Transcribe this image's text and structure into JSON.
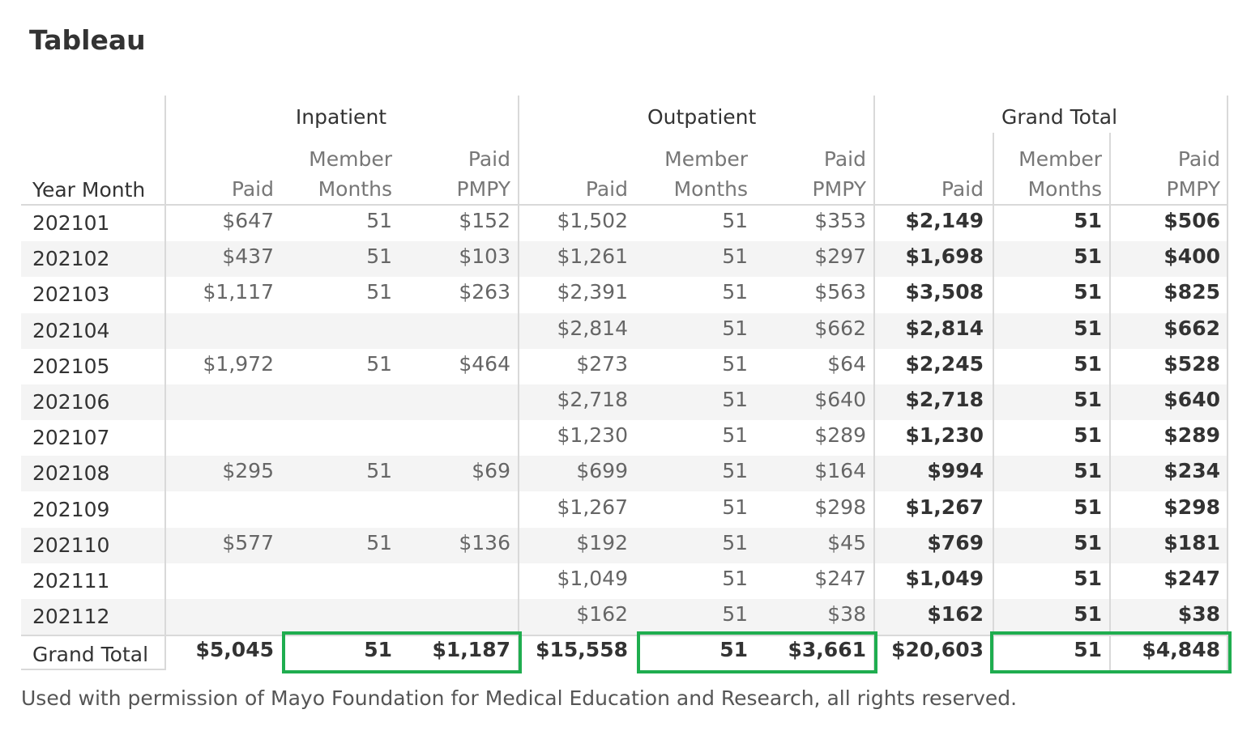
{
  "title": "Tableau",
  "groups": [
    "Inpatient",
    "Outpatient",
    "Grand Total"
  ],
  "row_header": "Year Month",
  "sub_headers": [
    [
      "",
      "Paid"
    ],
    [
      "Member",
      "Months"
    ],
    [
      "Paid",
      "PMPY"
    ]
  ],
  "rows": [
    {
      "month": "202101",
      "in": [
        "$647",
        "51",
        "$152"
      ],
      "out": [
        "$1,502",
        "51",
        "$353"
      ],
      "total": [
        "$2,149",
        "51",
        "$506"
      ]
    },
    {
      "month": "202102",
      "in": [
        "$437",
        "51",
        "$103"
      ],
      "out": [
        "$1,261",
        "51",
        "$297"
      ],
      "total": [
        "$1,698",
        "51",
        "$400"
      ]
    },
    {
      "month": "202103",
      "in": [
        "$1,117",
        "51",
        "$263"
      ],
      "out": [
        "$2,391",
        "51",
        "$563"
      ],
      "total": [
        "$3,508",
        "51",
        "$825"
      ]
    },
    {
      "month": "202104",
      "in": [
        "",
        "",
        ""
      ],
      "out": [
        "$2,814",
        "51",
        "$662"
      ],
      "total": [
        "$2,814",
        "51",
        "$662"
      ]
    },
    {
      "month": "202105",
      "in": [
        "$1,972",
        "51",
        "$464"
      ],
      "out": [
        "$273",
        "51",
        "$64"
      ],
      "total": [
        "$2,245",
        "51",
        "$528"
      ]
    },
    {
      "month": "202106",
      "in": [
        "",
        "",
        ""
      ],
      "out": [
        "$2,718",
        "51",
        "$640"
      ],
      "total": [
        "$2,718",
        "51",
        "$640"
      ]
    },
    {
      "month": "202107",
      "in": [
        "",
        "",
        ""
      ],
      "out": [
        "$1,230",
        "51",
        "$289"
      ],
      "total": [
        "$1,230",
        "51",
        "$289"
      ]
    },
    {
      "month": "202108",
      "in": [
        "$295",
        "51",
        "$69"
      ],
      "out": [
        "$699",
        "51",
        "$164"
      ],
      "total": [
        "$994",
        "51",
        "$234"
      ]
    },
    {
      "month": "202109",
      "in": [
        "",
        "",
        ""
      ],
      "out": [
        "$1,267",
        "51",
        "$298"
      ],
      "total": [
        "$1,267",
        "51",
        "$298"
      ]
    },
    {
      "month": "202110",
      "in": [
        "$577",
        "51",
        "$136"
      ],
      "out": [
        "$192",
        "51",
        "$45"
      ],
      "total": [
        "$769",
        "51",
        "$181"
      ]
    },
    {
      "month": "202111",
      "in": [
        "",
        "",
        ""
      ],
      "out": [
        "$1,049",
        "51",
        "$247"
      ],
      "total": [
        "$1,049",
        "51",
        "$247"
      ]
    },
    {
      "month": "202112",
      "in": [
        "",
        "",
        ""
      ],
      "out": [
        "$162",
        "51",
        "$38"
      ],
      "total": [
        "$162",
        "51",
        "$38"
      ]
    }
  ],
  "grand_total": {
    "label": "Grand Total",
    "in": [
      "$5,045",
      "51",
      "$1,187"
    ],
    "out": [
      "$15,558",
      "51",
      "$3,661"
    ],
    "total": [
      "$20,603",
      "51",
      "$4,848"
    ]
  },
  "highlight_color": "#1fad4f",
  "footer": "Used with permission of Mayo Foundation for Medical Education and Research, all rights reserved."
}
